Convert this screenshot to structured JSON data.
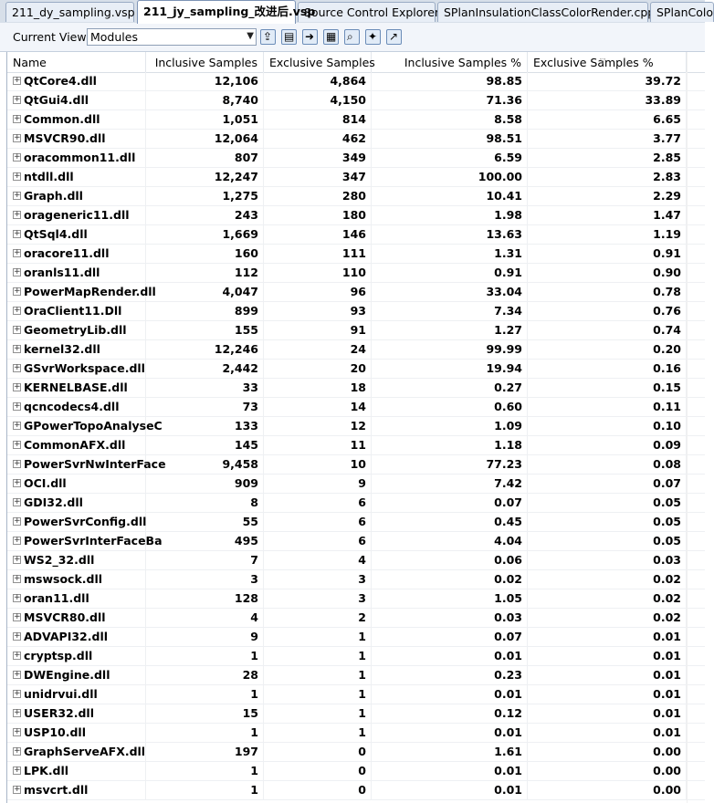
{
  "tabs": [
    {
      "label": "211_dy_sampling.vsp"
    },
    {
      "label": "211_jy_sampling_改进后.vsp"
    },
    {
      "label": "Source Control Explorer"
    },
    {
      "label": "SPlanInsulationClassColorRender.cpp"
    },
    {
      "label": "SPlanColo"
    }
  ],
  "toolbar": {
    "view_label": "Current View:",
    "view_value": "Modules",
    "icons": [
      "export-icon",
      "copy-report-icon",
      "go-forward-icon",
      "filter-icon",
      "search-icon",
      "tools-icon",
      "chart-icon"
    ]
  },
  "columns": [
    "Name",
    "Inclusive Samples",
    "Exclusive Samples",
    "Inclusive Samples %",
    "Exclusive Samples %"
  ],
  "rows": [
    [
      "QtCore4.dll",
      "12,106",
      "4,864",
      "98.85",
      "39.72"
    ],
    [
      "QtGui4.dll",
      "8,740",
      "4,150",
      "71.36",
      "33.89"
    ],
    [
      "Common.dll",
      "1,051",
      "814",
      "8.58",
      "6.65"
    ],
    [
      "MSVCR90.dll",
      "12,064",
      "462",
      "98.51",
      "3.77"
    ],
    [
      "oracommon11.dll",
      "807",
      "349",
      "6.59",
      "2.85"
    ],
    [
      "ntdll.dll",
      "12,247",
      "347",
      "100.00",
      "2.83"
    ],
    [
      "Graph.dll",
      "1,275",
      "280",
      "10.41",
      "2.29"
    ],
    [
      "orageneric11.dll",
      "243",
      "180",
      "1.98",
      "1.47"
    ],
    [
      "QtSql4.dll",
      "1,669",
      "146",
      "13.63",
      "1.19"
    ],
    [
      "oracore11.dll",
      "160",
      "111",
      "1.31",
      "0.91"
    ],
    [
      "oranls11.dll",
      "112",
      "110",
      "0.91",
      "0.90"
    ],
    [
      "PowerMapRender.dll",
      "4,047",
      "96",
      "33.04",
      "0.78"
    ],
    [
      "OraClient11.Dll",
      "899",
      "93",
      "7.34",
      "0.76"
    ],
    [
      "GeometryLib.dll",
      "155",
      "91",
      "1.27",
      "0.74"
    ],
    [
      "kernel32.dll",
      "12,246",
      "24",
      "99.99",
      "0.20"
    ],
    [
      "GSvrWorkspace.dll",
      "2,442",
      "20",
      "19.94",
      "0.16"
    ],
    [
      "KERNELBASE.dll",
      "33",
      "18",
      "0.27",
      "0.15"
    ],
    [
      "qcncodecs4.dll",
      "73",
      "14",
      "0.60",
      "0.11"
    ],
    [
      "GPowerTopoAnalyseC",
      "133",
      "12",
      "1.09",
      "0.10"
    ],
    [
      "CommonAFX.dll",
      "145",
      "11",
      "1.18",
      "0.09"
    ],
    [
      "PowerSvrNwInterFace",
      "9,458",
      "10",
      "77.23",
      "0.08"
    ],
    [
      "OCI.dll",
      "909",
      "9",
      "7.42",
      "0.07"
    ],
    [
      "GDI32.dll",
      "8",
      "6",
      "0.07",
      "0.05"
    ],
    [
      "PowerSvrConfig.dll",
      "55",
      "6",
      "0.45",
      "0.05"
    ],
    [
      "PowerSvrInterFaceBa",
      "495",
      "6",
      "4.04",
      "0.05"
    ],
    [
      "WS2_32.dll",
      "7",
      "4",
      "0.06",
      "0.03"
    ],
    [
      "mswsock.dll",
      "3",
      "3",
      "0.02",
      "0.02"
    ],
    [
      "oran11.dll",
      "128",
      "3",
      "1.05",
      "0.02"
    ],
    [
      "MSVCR80.dll",
      "4",
      "2",
      "0.03",
      "0.02"
    ],
    [
      "ADVAPI32.dll",
      "9",
      "1",
      "0.07",
      "0.01"
    ],
    [
      "cryptsp.dll",
      "1",
      "1",
      "0.01",
      "0.01"
    ],
    [
      "DWEngine.dll",
      "28",
      "1",
      "0.23",
      "0.01"
    ],
    [
      "unidrvui.dll",
      "1",
      "1",
      "0.01",
      "0.01"
    ],
    [
      "USER32.dll",
      "15",
      "1",
      "0.12",
      "0.01"
    ],
    [
      "USP10.dll",
      "1",
      "1",
      "0.01",
      "0.01"
    ],
    [
      "GraphServeAFX.dll",
      "197",
      "0",
      "1.61",
      "0.00"
    ],
    [
      "LPK.dll",
      "1",
      "0",
      "0.01",
      "0.00"
    ],
    [
      "msvcrt.dll",
      "1",
      "0",
      "0.01",
      "0.00"
    ]
  ]
}
